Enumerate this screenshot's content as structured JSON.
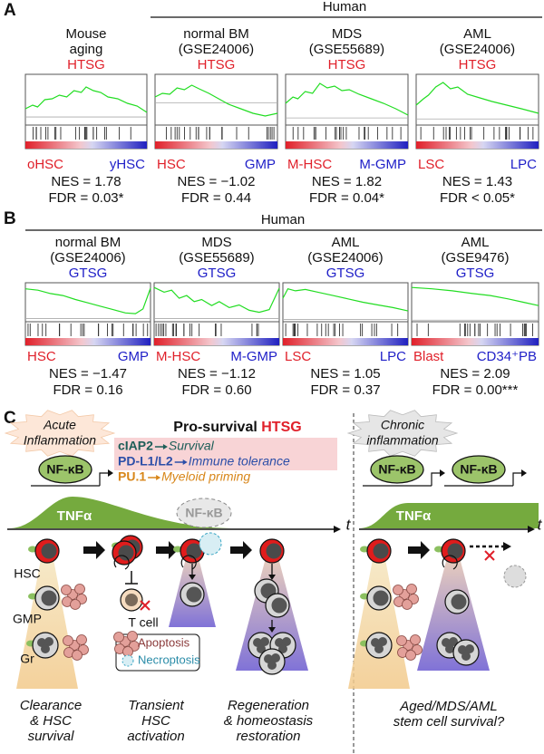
{
  "panel_a": {
    "letter": "A",
    "group": "Human",
    "plots": [
      {
        "title": [
          "Mouse",
          "aging"
        ],
        "gene_set": "HTSG",
        "left": "oHSC",
        "right": "yHSC",
        "nes": "NES = 1.78",
        "fdr": "FDR = 0.03*"
      },
      {
        "title": [
          "normal BM",
          "(GSE24006)"
        ],
        "gene_set": "HTSG",
        "left": "HSC",
        "right": "GMP",
        "nes": "NES = −1.02",
        "fdr": "FDR = 0.44"
      },
      {
        "title": [
          "MDS",
          "(GSE55689)"
        ],
        "gene_set": "HTSG",
        "left": "M-HSC",
        "right": "M-GMP",
        "nes": "NES = 1.82",
        "fdr": "FDR = 0.04*"
      },
      {
        "title": [
          "AML",
          "(GSE24006)"
        ],
        "gene_set": "HTSG",
        "left": "LSC",
        "right": "LPC",
        "nes": "NES = 1.43",
        "fdr": "FDR < 0.05*"
      }
    ]
  },
  "panel_b": {
    "letter": "B",
    "group": "Human",
    "plots": [
      {
        "title": [
          "normal BM",
          "(GSE24006)"
        ],
        "gene_set": "GTSG",
        "left": "HSC",
        "right": "GMP",
        "nes": "NES = −1.47",
        "fdr": "FDR = 0.16"
      },
      {
        "title": [
          "MDS",
          "(GSE55689)"
        ],
        "gene_set": "GTSG",
        "left": "M-HSC",
        "right": "M-GMP",
        "nes": "NES = −1.12",
        "fdr": "FDR = 0.60"
      },
      {
        "title": [
          "AML",
          "(GSE24006)"
        ],
        "gene_set": "GTSG",
        "left": "LSC",
        "right": "LPC",
        "nes": "NES = 1.05",
        "fdr": "FDR = 0.37"
      },
      {
        "title": [
          "AML",
          "(GSE9476)"
        ],
        "gene_set": "GTSG",
        "left": "Blast",
        "right": "CD34⁺PB",
        "nes": "NES = 2.09",
        "fdr": "FDR = 0.00***"
      }
    ]
  },
  "panel_c": {
    "letter": "C",
    "acute": [
      "Acute",
      "Inflammation"
    ],
    "heading": "Pro-survival",
    "heading_set": "HTSG",
    "targets": [
      {
        "gene": "cIAP2",
        "effect": "Survival"
      },
      {
        "gene": "PD-L1/L2",
        "effect": "Immune tolerance"
      },
      {
        "gene": "PU.1",
        "effect": "Myeloid priming"
      }
    ],
    "nfkb": "NF-κB",
    "tnf": "TNFα",
    "time": "t",
    "cells": [
      "HSC",
      "GMP",
      "Gr"
    ],
    "t_cell": "T cell",
    "legend": [
      "Apoptosis",
      "Necroptosis"
    ],
    "captions": [
      [
        "Clearance",
        "& HSC",
        "survival"
      ],
      [
        "Transient",
        "HSC",
        "activation"
      ],
      [
        "Regeneration",
        "& homeostasis",
        "restoration"
      ]
    ],
    "chronic": [
      "Chronic",
      "inflammation"
    ],
    "question": [
      "Aged/MDS/AML",
      "stem cell survival?"
    ]
  }
}
